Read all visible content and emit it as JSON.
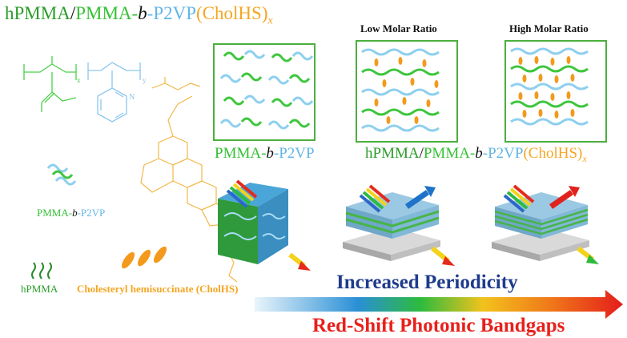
{
  "title": {
    "part1": "hPMMA",
    "sep1": "/",
    "part2": "PMMA-",
    "part3": "b",
    "part4": "-P2VP",
    "part5": "(CholHS)",
    "sub": "x"
  },
  "structure": {
    "subscript_x": "x",
    "subscript_y": "y",
    "nitrogen": "N"
  },
  "headers": {
    "low": "Low Molar Ratio",
    "high": "High Molar Ratio"
  },
  "captions": {
    "copolymer_a": "PMMA-",
    "copolymer_b": "b",
    "copolymer_c": "-P2VP",
    "blend_a": "hPMMA",
    "blend_b": "/",
    "blend_c": "PMMA-",
    "blend_d": "b",
    "blend_e": "-P2VP",
    "blend_f": "(CholHS)",
    "blend_sub": "x"
  },
  "legend": {
    "bcp_a": "PMMA-",
    "bcp_b": "b",
    "bcp_c": "-P2VP",
    "hpmma": "hPMMA",
    "cholhs": "Cholesteryl hemisuccinate (CholHS)"
  },
  "arrow_labels": {
    "periodicity": "Increased Periodicity",
    "redshift": "Red-Shift Photonic Bandgaps"
  },
  "colors": {
    "green": "#2a9d2a",
    "light_blue": "#62b6e6",
    "orange": "#f5a623",
    "navy": "#1f3b8c",
    "red": "#e8201b"
  }
}
